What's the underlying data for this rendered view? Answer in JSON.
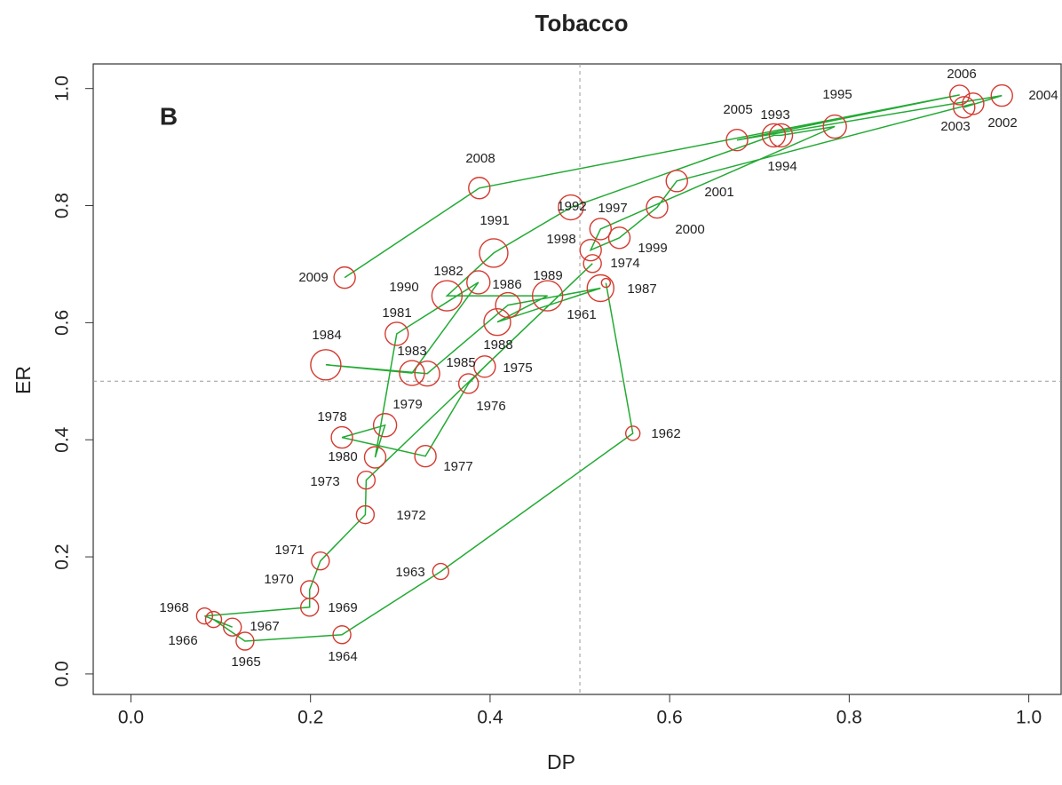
{
  "chart_data": {
    "type": "scatter",
    "title": "Tobacco",
    "panel_label": "B",
    "x_label": "DP",
    "y_label": "ER",
    "xlim": [
      -0.042,
      1.036
    ],
    "ylim": [
      -0.035,
      1.042
    ],
    "xticks": [
      {
        "value": 0,
        "label": "0.0"
      },
      0.2,
      0.4,
      0.6,
      0.8,
      {
        "value": 1,
        "label": "1.0"
      }
    ],
    "yticks": [
      {
        "value": 0,
        "label": "0.0"
      },
      0.2,
      0.4,
      0.6,
      0.8,
      {
        "value": 1,
        "label": "1.0"
      }
    ],
    "ref_lines": {
      "x": 0.5,
      "y": 0.5
    },
    "marker_color": "#d43a2f",
    "line_color": "#22aa33",
    "ref_color": "#999999",
    "labels": [
      "1961",
      "1962",
      "1963",
      "1964",
      "1965",
      "1966",
      "1967",
      "1968",
      "1969",
      "1970",
      "1971",
      "1972",
      "1973",
      "1974",
      "1975",
      "1976",
      "1977",
      "1978",
      "1979",
      "1980",
      "1981",
      "1982",
      "1983",
      "1984",
      "1985",
      "1986",
      "1987",
      "1988",
      "1989",
      "1990",
      "1991",
      "1992",
      "1993",
      "1994",
      "1995",
      "1997",
      "1998",
      "1999",
      "2000",
      "2001",
      "2002",
      "2003",
      "2004",
      "2005",
      "2006",
      "2008",
      "2009"
    ],
    "x": [
      0.529,
      0.559,
      0.345,
      0.235,
      0.127,
      0.092,
      0.113,
      0.082,
      0.199,
      0.199,
      0.211,
      0.261,
      0.262,
      0.514,
      0.394,
      0.376,
      0.328,
      0.235,
      0.283,
      0.272,
      0.296,
      0.387,
      0.313,
      0.217,
      0.33,
      0.42,
      0.523,
      0.408,
      0.464,
      0.352,
      0.404,
      0.49,
      0.716,
      0.724,
      0.784,
      0.523,
      0.512,
      0.544,
      0.586,
      0.608,
      0.938,
      0.928,
      0.97,
      0.675,
      0.923,
      0.388,
      0.238
    ],
    "y": [
      0.668,
      0.411,
      0.175,
      0.067,
      0.056,
      0.093,
      0.08,
      0.099,
      0.114,
      0.144,
      0.193,
      0.272,
      0.331,
      0.701,
      0.525,
      0.496,
      0.372,
      0.404,
      0.425,
      0.37,
      0.581,
      0.669,
      0.514,
      0.528,
      0.513,
      0.63,
      0.659,
      0.601,
      0.646,
      0.646,
      0.719,
      0.797,
      0.92,
      0.92,
      0.935,
      0.76,
      0.724,
      0.745,
      0.797,
      0.842,
      0.974,
      0.968,
      0.988,
      0.912,
      0.989,
      0.83,
      0.677
    ],
    "sizes": [
      5,
      8,
      9,
      10,
      10,
      9,
      10,
      9,
      10,
      10,
      10,
      10,
      10,
      10,
      12,
      11,
      12,
      12,
      13,
      12,
      13,
      13,
      14,
      17,
      14,
      14,
      15,
      15,
      17,
      17,
      16,
      14,
      13,
      13,
      13,
      12,
      12,
      12,
      12,
      12,
      12,
      12,
      12,
      12,
      11,
      12,
      12
    ]
  }
}
